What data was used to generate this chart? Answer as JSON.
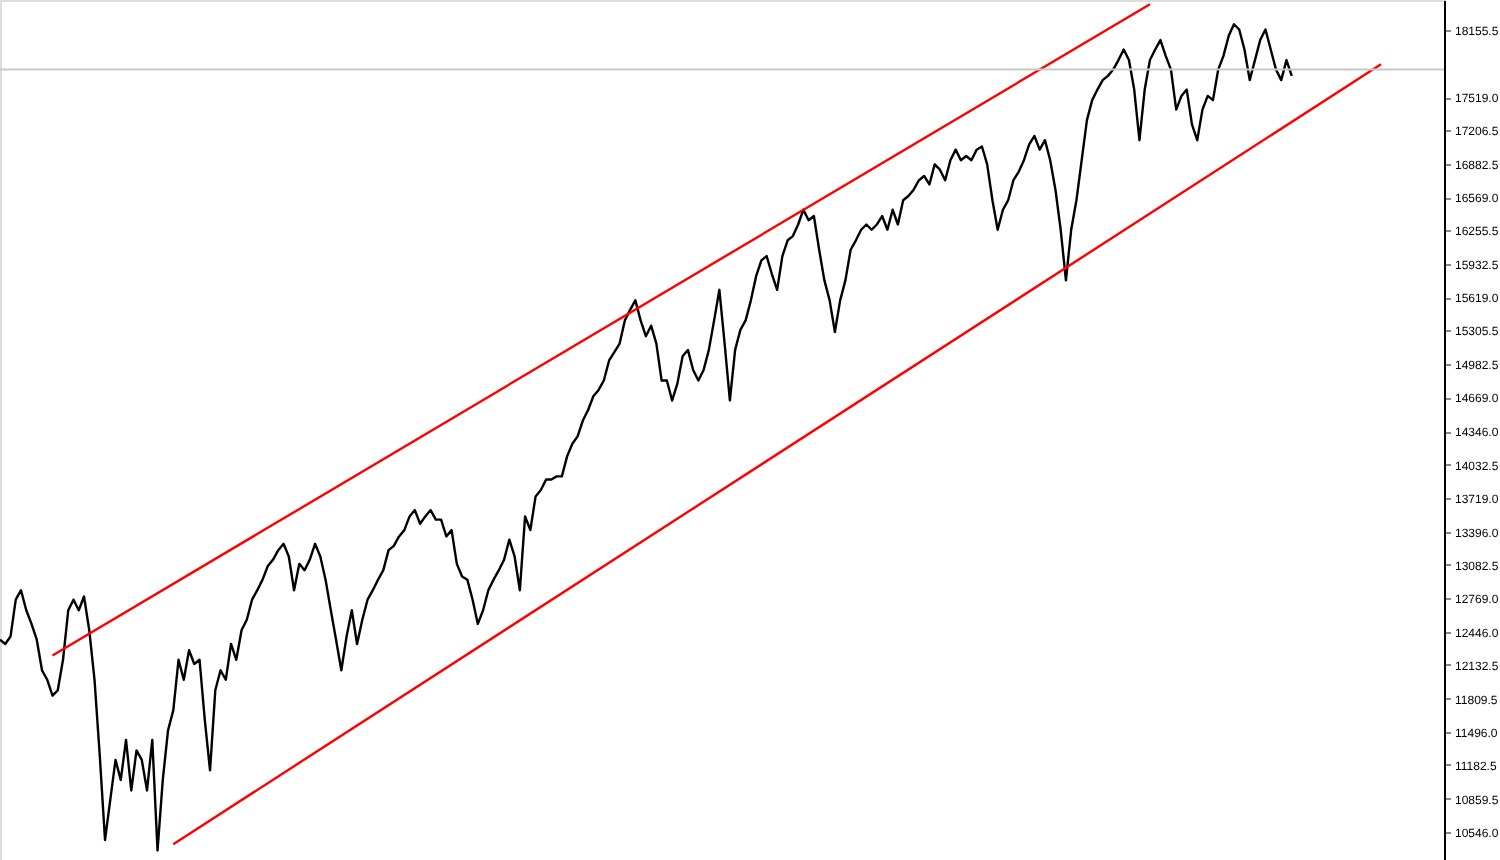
{
  "chart_data": {
    "type": "line",
    "tick_labels": "y",
    "grid": false,
    "marker": "none",
    "line_style": "solid",
    "categories": [
      null,
      null,
      null,
      null,
      null,
      null,
      null,
      null,
      null,
      null,
      null,
      null,
      null,
      null,
      null,
      null,
      null,
      null,
      null,
      null,
      null,
      null,
      null,
      null,
      null,
      null,
      null,
      null,
      null,
      null,
      null,
      null,
      null,
      null,
      null,
      null,
      null,
      null,
      null,
      null,
      null,
      null,
      null,
      null,
      null,
      null,
      null,
      null,
      null,
      null,
      null,
      null,
      null,
      null,
      null,
      null,
      null,
      null,
      null,
      null,
      null,
      null,
      null,
      null,
      null,
      null,
      null,
      null,
      null,
      null,
      null,
      null,
      null,
      null,
      null,
      null,
      null,
      null,
      null,
      null,
      null,
      null,
      null,
      null,
      null,
      null,
      null,
      null,
      null,
      null,
      null,
      null,
      null,
      null,
      null,
      null,
      null,
      null,
      null,
      null,
      null,
      null,
      null,
      null,
      null,
      null,
      null,
      null,
      null,
      null,
      null,
      null,
      null,
      null,
      null,
      null,
      null,
      null,
      null,
      null,
      null,
      null,
      null,
      null,
      null,
      null,
      null,
      null,
      null,
      null,
      null,
      null,
      null,
      null,
      null,
      null,
      null,
      null,
      null,
      null,
      null,
      null,
      null,
      null,
      null,
      null,
      null,
      null,
      null,
      null,
      null,
      null,
      null,
      null,
      null,
      null,
      null,
      null,
      null,
      null,
      null,
      null,
      null,
      null,
      null,
      null,
      null,
      null,
      null,
      null,
      null,
      null,
      null,
      null,
      null,
      null,
      null,
      null,
      null,
      null,
      null,
      null,
      null,
      null,
      null,
      null,
      null,
      null,
      null,
      null,
      null,
      null,
      null,
      null,
      null,
      null,
      null,
      null,
      null,
      null,
      null,
      null,
      null,
      null,
      null,
      null,
      null,
      null,
      null,
      null,
      null,
      null,
      null,
      null,
      null,
      null,
      null,
      null,
      null,
      null,
      null,
      null,
      null,
      null,
      null,
      null,
      null,
      null,
      null,
      null,
      null,
      null,
      null,
      null,
      null,
      null,
      null,
      null,
      null,
      null,
      null,
      null,
      null,
      null,
      null,
      null,
      null,
      null,
      null,
      null,
      null,
      null,
      null,
      null,
      null,
      null,
      null,
      null,
      null,
      null,
      null,
      null,
      null,
      null,
      null,
      null,
      null,
      null,
      null,
      null,
      null,
      null,
      null,
      null,
      null,
      null
    ],
    "ylim": [
      10280,
      18440
    ],
    "yticks": [
      {
        "value": 10546,
        "label": "10546.0"
      },
      {
        "value": 10859.5,
        "label": "10859.5"
      },
      {
        "value": 11182.5,
        "label": "11182.5"
      },
      {
        "value": 11496,
        "label": "11496.0"
      },
      {
        "value": 11809.5,
        "label": "11809.5"
      },
      {
        "value": 12132.5,
        "label": "12132.5"
      },
      {
        "value": 12446,
        "label": "12446.0"
      },
      {
        "value": 12769,
        "label": "12769.0"
      },
      {
        "value": 13082.5,
        "label": "13082.5"
      },
      {
        "value": 13396,
        "label": "13396.0"
      },
      {
        "value": 13719,
        "label": "13719.0"
      },
      {
        "value": 14032.5,
        "label": "14032.5"
      },
      {
        "value": 14346,
        "label": "14346.0"
      },
      {
        "value": 14669,
        "label": "14669.0"
      },
      {
        "value": 14982.5,
        "label": "14982.5"
      },
      {
        "value": 15305.5,
        "label": "15305.5"
      },
      {
        "value": 15619,
        "label": "15619.0"
      },
      {
        "value": 15932.5,
        "label": "15932.5"
      },
      {
        "value": 16255.5,
        "label": "16255.5"
      },
      {
        "value": 16569,
        "label": "16569.0"
      },
      {
        "value": 16882.5,
        "label": "16882.5"
      },
      {
        "value": 17206.5,
        "label": "17206.5"
      },
      {
        "value": 17519,
        "label": "17519.0"
      },
      {
        "value": 18155.5,
        "label": "18155.5"
      }
    ],
    "ref_lines": [
      {
        "axis": "y",
        "value": 17780,
        "color": "#c8c8c8"
      }
    ],
    "series": [
      {
        "color": "#000000",
        "values": [
          12370,
          12330,
          12400,
          12750,
          12840,
          12650,
          12520,
          12370,
          12080,
          11990,
          11840,
          11890,
          12180,
          12650,
          12750,
          12650,
          12780,
          12460,
          11990,
          11270,
          10470,
          10850,
          11230,
          11040,
          11420,
          10940,
          11320,
          11230,
          10940,
          11420,
          10370,
          11040,
          11510,
          11700,
          12180,
          11990,
          12270,
          12140,
          12180,
          11610,
          11130,
          11890,
          12080,
          11990,
          12330,
          12180,
          12460,
          12560,
          12750,
          12840,
          12940,
          13070,
          13130,
          13220,
          13280,
          13160,
          12840,
          13090,
          13030,
          13130,
          13280,
          13160,
          12940,
          12650,
          12370,
          12080,
          12400,
          12650,
          12330,
          12560,
          12750,
          12840,
          12940,
          13030,
          13220,
          13260,
          13350,
          13410,
          13540,
          13600,
          13470,
          13540,
          13600,
          13510,
          13510,
          13350,
          13410,
          13090,
          12970,
          12940,
          12750,
          12520,
          12650,
          12840,
          12940,
          13030,
          13130,
          13320,
          13160,
          12840,
          13540,
          13410,
          13730,
          13790,
          13890,
          13890,
          13920,
          13920,
          14110,
          14230,
          14300,
          14450,
          14550,
          14680,
          14740,
          14830,
          15020,
          15100,
          15180,
          15400,
          15500,
          15590,
          15400,
          15250,
          15350,
          15180,
          14830,
          14830,
          14640,
          14800,
          15060,
          15120,
          14930,
          14830,
          14930,
          15120,
          15400,
          15690,
          15180,
          14640,
          15120,
          15310,
          15400,
          15590,
          15820,
          15970,
          16010,
          15840,
          15690,
          16010,
          16160,
          16200,
          16310,
          16450,
          16350,
          16390,
          16070,
          15780,
          15590,
          15290,
          15590,
          15780,
          16070,
          16160,
          16260,
          16310,
          16260,
          16310,
          16390,
          16260,
          16450,
          16310,
          16540,
          16580,
          16640,
          16730,
          16770,
          16690,
          16880,
          16830,
          16730,
          16920,
          17020,
          16920,
          16960,
          16920,
          17020,
          17050,
          16880,
          16540,
          16260,
          16450,
          16540,
          16730,
          16810,
          16920,
          17070,
          17150,
          17020,
          17110,
          16920,
          16640,
          16260,
          15780,
          16260,
          16540,
          16920,
          17300,
          17490,
          17590,
          17680,
          17720,
          17780,
          17870,
          17970,
          17870,
          17590,
          17110,
          17590,
          17870,
          17970,
          18060,
          17910,
          17780,
          17400,
          17530,
          17590,
          17260,
          17110,
          17400,
          17530,
          17490,
          17780,
          17910,
          18100,
          18210,
          18160,
          17970,
          17680,
          17870,
          18060,
          18160,
          17970,
          17780,
          17680,
          17870,
          17720,
          null,
          null,
          null,
          null,
          null,
          null,
          null,
          null,
          null,
          null,
          null,
          null,
          null,
          null,
          null,
          null,
          null,
          null,
          null,
          null,
          null,
          null,
          null,
          null,
          null,
          null,
          null,
          null,
          null
        ]
      },
      {
        "type": "line",
        "color": "#ff0000",
        "values": [
          null,
          null,
          null,
          null,
          null,
          null,
          null,
          null,
          null,
          null,
          12220,
          null,
          null,
          null,
          null,
          null,
          null,
          null,
          null,
          null,
          null,
          null,
          null,
          null,
          null,
          null,
          null,
          null,
          null,
          null,
          null,
          null,
          null,
          null,
          null,
          null,
          null,
          null,
          null,
          null,
          null,
          null,
          null,
          null,
          null,
          null,
          null,
          null,
          null,
          null,
          null,
          null,
          null,
          null,
          null,
          null,
          null,
          null,
          null,
          null,
          null,
          null,
          null,
          null,
          null,
          null,
          null,
          null,
          null,
          null,
          null,
          null,
          null,
          null,
          null,
          null,
          null,
          null,
          null,
          null,
          null,
          null,
          null,
          null,
          null,
          null,
          null,
          null,
          null,
          null,
          null,
          null,
          null,
          null,
          null,
          null,
          null,
          null,
          null,
          null,
          null,
          null,
          null,
          null,
          null,
          null,
          null,
          null,
          null,
          null,
          null,
          null,
          null,
          null,
          null,
          null,
          null,
          null,
          null,
          null,
          null,
          null,
          null,
          null,
          null,
          null,
          null,
          null,
          null,
          null,
          null,
          null,
          null,
          null,
          null,
          null,
          null,
          null,
          null,
          null,
          null,
          null,
          null,
          null,
          null,
          null,
          null,
          null,
          null,
          null,
          null,
          null,
          null,
          null,
          null,
          null,
          null,
          null,
          null,
          null,
          null,
          null,
          null,
          null,
          null,
          null,
          null,
          null,
          null,
          null,
          null,
          null,
          null,
          null,
          null,
          null,
          null,
          null,
          null,
          null,
          null,
          null,
          null,
          null,
          null,
          null,
          null,
          null,
          null,
          null,
          null,
          null,
          null,
          null,
          null,
          null,
          null,
          null,
          null,
          null,
          null,
          null,
          null,
          null,
          null,
          null,
          null,
          null,
          null,
          null,
          null,
          null,
          null,
          null,
          null,
          null,
          null,
          null,
          null,
          18400,
          null,
          null,
          null,
          null,
          null,
          null,
          null,
          null,
          null,
          null,
          null,
          null,
          null,
          null,
          null,
          null,
          null,
          null,
          null,
          null,
          null,
          null,
          null,
          null,
          null,
          null,
          null,
          null,
          null,
          null,
          null,
          null,
          null,
          null,
          null,
          null,
          null,
          null,
          null,
          null,
          null,
          null,
          null,
          null,
          null,
          null,
          null,
          null,
          null,
          null,
          null,
          null,
          null,
          null,
          null,
          null
        ]
      },
      {
        "type": "line",
        "color": "#ff0000",
        "values": [
          null,
          null,
          null,
          null,
          null,
          null,
          null,
          null,
          null,
          null,
          null,
          null,
          null,
          null,
          null,
          null,
          null,
          null,
          null,
          null,
          null,
          null,
          null,
          null,
          null,
          null,
          null,
          null,
          null,
          null,
          null,
          null,
          null,
          10430,
          null,
          null,
          null,
          null,
          null,
          null,
          null,
          null,
          null,
          null,
          null,
          null,
          null,
          null,
          null,
          null,
          null,
          null,
          null,
          null,
          null,
          null,
          null,
          null,
          null,
          null,
          null,
          null,
          null,
          null,
          null,
          null,
          null,
          null,
          null,
          null,
          null,
          null,
          null,
          null,
          null,
          null,
          null,
          null,
          null,
          null,
          null,
          null,
          null,
          null,
          null,
          null,
          null,
          null,
          null,
          null,
          null,
          null,
          null,
          null,
          null,
          null,
          null,
          null,
          null,
          null,
          null,
          null,
          null,
          null,
          null,
          null,
          null,
          null,
          null,
          null,
          null,
          null,
          null,
          null,
          null,
          null,
          null,
          null,
          null,
          null,
          null,
          null,
          null,
          null,
          null,
          null,
          null,
          null,
          null,
          null,
          null,
          null,
          null,
          null,
          null,
          null,
          null,
          null,
          null,
          null,
          null,
          null,
          null,
          null,
          null,
          null,
          null,
          null,
          null,
          null,
          null,
          null,
          null,
          null,
          null,
          null,
          null,
          null,
          null,
          null,
          null,
          null,
          null,
          null,
          null,
          null,
          null,
          null,
          null,
          null,
          null,
          null,
          null,
          null,
          null,
          null,
          null,
          null,
          null,
          null,
          null,
          null,
          null,
          null,
          null,
          null,
          null,
          null,
          null,
          null,
          null,
          null,
          null,
          null,
          null,
          null,
          null,
          null,
          null,
          null,
          null,
          null,
          null,
          null,
          null,
          null,
          null,
          null,
          null,
          null,
          null,
          null,
          null,
          null,
          null,
          null,
          null,
          null,
          null,
          null,
          null,
          null,
          null,
          null,
          null,
          null,
          null,
          null,
          null,
          null,
          null,
          null,
          null,
          null,
          null,
          null,
          null,
          null,
          null,
          null,
          null,
          null,
          null,
          null,
          null,
          null,
          null,
          null,
          null,
          null,
          null,
          null,
          null,
          null,
          null,
          null,
          null,
          null,
          null,
          null,
          null,
          null,
          null,
          17830,
          null,
          null,
          null,
          null,
          null,
          null,
          null,
          null,
          null,
          null,
          null,
          null
        ]
      }
    ]
  }
}
